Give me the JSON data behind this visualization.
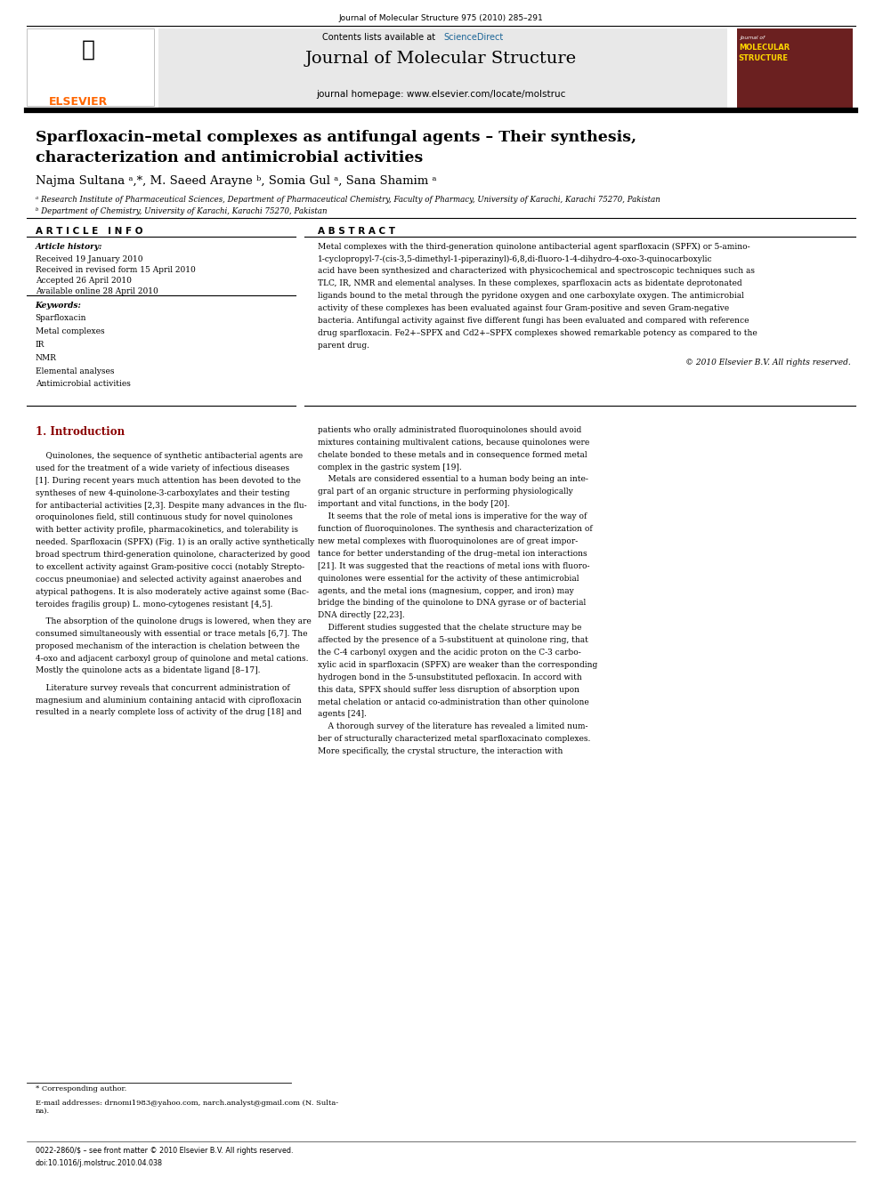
{
  "journal_ref": "Journal of Molecular Structure 975 (2010) 285–291",
  "contents_line": "Contents lists available at",
  "sciencedirect": "ScienceDirect",
  "journal_title": "Journal of Molecular Structure",
  "journal_homepage": "journal homepage: www.elsevier.com/locate/molstruc",
  "paper_title_line1": "Sparfloxacin–metal complexes as antifungal agents – Their synthesis,",
  "paper_title_line2": "characterization and antimicrobial activities",
  "authors": "Najma Sultana ᵃ,*, M. Saeed Arayne ᵇ, Somia Gul ᵃ, Sana Shamim ᵃ",
  "affil_a": "ᵃ Research Institute of Pharmaceutical Sciences, Department of Pharmaceutical Chemistry, Faculty of Pharmacy, University of Karachi, Karachi 75270, Pakistan",
  "affil_b": "ᵇ Department of Chemistry, University of Karachi, Karachi 75270, Pakistan",
  "article_info_label": "A R T I C L E   I N F O",
  "abstract_label": "A B S T R A C T",
  "article_history_label": "Article history:",
  "received": "Received 19 January 2010",
  "revised": "Received in revised form 15 April 2010",
  "accepted": "Accepted 26 April 2010",
  "available": "Available online 28 April 2010",
  "keywords_label": "Keywords:",
  "keywords": [
    "Sparfloxacin",
    "Metal complexes",
    "IR",
    "NMR",
    "Elemental analyses",
    "Antimicrobial activities"
  ],
  "copyright": "© 2010 Elsevier B.V. All rights reserved.",
  "intro_heading": "1. Introduction",
  "footnote_star": "* Corresponding author.",
  "footnote_email": "E-mail addresses: drnomi1983@yahoo.com, narch.analyst@gmail.com (N. Sulta-\nna).",
  "issn_line": "0022-2860/$ – see front matter © 2010 Elsevier B.V. All rights reserved.",
  "doi_line": "doi:10.1016/j.molstruc.2010.04.038",
  "background_color": "#ffffff",
  "elsevier_color": "#FF6600",
  "sciencedirect_color": "#1a6496",
  "section_header_color": "#8B0000",
  "abstract_lines": [
    "Metal complexes with the third-generation quinolone antibacterial agent sparfloxacin (SPFX) or 5-amino-",
    "1-cyclopropyl-7-(cis-3,5-dimethyl-1-piperazinyl)-6,8,di-fluoro-1-4-dihydro-4-oxo-3-quinocarboxylic",
    "acid have been synthesized and characterized with physicochemical and spectroscopic techniques such as",
    "TLC, IR, NMR and elemental analyses. In these complexes, sparfloxacin acts as bidentate deprotonated",
    "ligands bound to the metal through the pyridone oxygen and one carboxylate oxygen. The antimicrobial",
    "activity of these complexes has been evaluated against four Gram-positive and seven Gram-negative",
    "bacteria. Antifungal activity against five different fungi has been evaluated and compared with reference",
    "drug sparfloxacin. Fe2+–SPFX and Cd2+–SPFX complexes showed remarkable potency as compared to the",
    "parent drug."
  ],
  "intro_col1_lines": [
    "    Quinolones, the sequence of synthetic antibacterial agents are",
    "used for the treatment of a wide variety of infectious diseases",
    "[1]. During recent years much attention has been devoted to the",
    "syntheses of new 4-quinolone-3-carboxylates and their testing",
    "for antibacterial activities [2,3]. Despite many advances in the flu-",
    "oroquinolones field, still continuous study for novel quinolones",
    "with better activity profile, pharmacokinetics, and tolerability is",
    "needed. Sparfloxacin (SPFX) (Fig. 1) is an orally active synthetically",
    "broad spectrum third-generation quinolone, characterized by good",
    "to excellent activity against Gram-positive cocci (notably Strepto-",
    "coccus pneumoniae) and selected activity against anaerobes and",
    "atypical pathogens. It is also moderately active against some (Bac-",
    "teroides fragilis group) L. mono-cytogenes resistant [4,5].",
    "",
    "    The absorption of the quinolone drugs is lowered, when they are",
    "consumed simultaneously with essential or trace metals [6,7]. The",
    "proposed mechanism of the interaction is chelation between the",
    "4-oxo and adjacent carboxyl group of quinolone and metal cations.",
    "Mostly the quinolone acts as a bidentate ligand [8–17].",
    "",
    "    Literature survey reveals that concurrent administration of",
    "magnesium and aluminium containing antacid with ciprofloxacin",
    "resulted in a nearly complete loss of activity of the drug [18] and"
  ],
  "intro_col2_lines": [
    "patients who orally administrated fluoroquinolones should avoid",
    "mixtures containing multivalent cations, because quinolones were",
    "chelate bonded to these metals and in consequence formed metal",
    "complex in the gastric system [19].",
    "    Metals are considered essential to a human body being an inte-",
    "gral part of an organic structure in performing physiologically",
    "important and vital functions, in the body [20].",
    "    It seems that the role of metal ions is imperative for the way of",
    "function of fluoroquinolones. The synthesis and characterization of",
    "new metal complexes with fluoroquinolones are of great impor-",
    "tance for better understanding of the drug–metal ion interactions",
    "[21]. It was suggested that the reactions of metal ions with fluoro-",
    "quinolones were essential for the activity of these antimicrobial",
    "agents, and the metal ions (magnesium, copper, and iron) may",
    "bridge the binding of the quinolone to DNA gyrase or of bacterial",
    "DNA directly [22,23].",
    "    Different studies suggested that the chelate structure may be",
    "affected by the presence of a 5-substituent at quinolone ring, that",
    "the C-4 carbonyl oxygen and the acidic proton on the C-3 carbo-",
    "xylic acid in sparfloxacin (SPFX) are weaker than the corresponding",
    "hydrogen bond in the 5-unsubstituted pefloxacin. In accord with",
    "this data, SPFX should suffer less disruption of absorption upon",
    "metal chelation or antacid co-administration than other quinolone",
    "agents [24].",
    "    A thorough survey of the literature has revealed a limited num-",
    "ber of structurally characterized metal sparfloxacinato complexes.",
    "More specifically, the crystal structure, the interaction with"
  ]
}
